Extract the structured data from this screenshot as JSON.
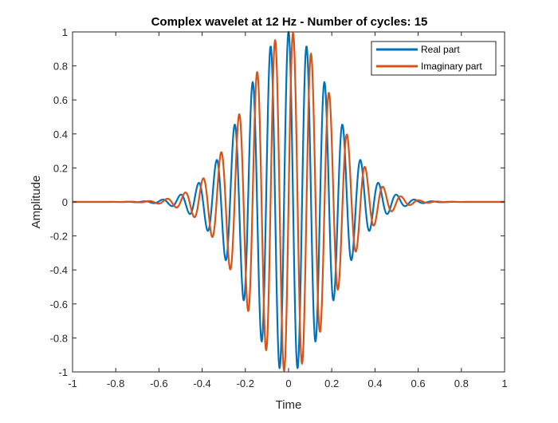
{
  "chart_data": {
    "type": "line",
    "title": "Complex wavelet at 12 Hz - Number of cycles: 15",
    "xlabel": "Time",
    "ylabel": "Amplitude",
    "xlim": [
      -1,
      1
    ],
    "ylim": [
      -1,
      1
    ],
    "xticks": [
      -1,
      -0.8,
      -0.6,
      -0.4,
      -0.2,
      0,
      0.2,
      0.4,
      0.6,
      0.8,
      1
    ],
    "xtick_labels": [
      "-1",
      "-0.8",
      "-0.6",
      "-0.4",
      "-0.2",
      "0",
      "0.2",
      "0.4",
      "0.6",
      "0.8",
      "1"
    ],
    "yticks": [
      -1,
      -0.8,
      -0.6,
      -0.4,
      -0.2,
      0,
      0.2,
      0.4,
      0.6,
      0.8,
      1
    ],
    "ytick_labels": [
      "-1",
      "-0.8",
      "-0.6",
      "-0.4",
      "-0.2",
      "0",
      "0.2",
      "0.4",
      "0.6",
      "0.8",
      "1"
    ],
    "grid": false,
    "legend_position": "top-right",
    "wavelet": {
      "frequency_hz": 12,
      "cycles": 15,
      "sample_step": 0.002
    },
    "series": [
      {
        "name": "Real part",
        "component": "cos",
        "color": "#0072BD"
      },
      {
        "name": "Imaginary part",
        "component": "sin",
        "color": "#D95319"
      }
    ]
  }
}
